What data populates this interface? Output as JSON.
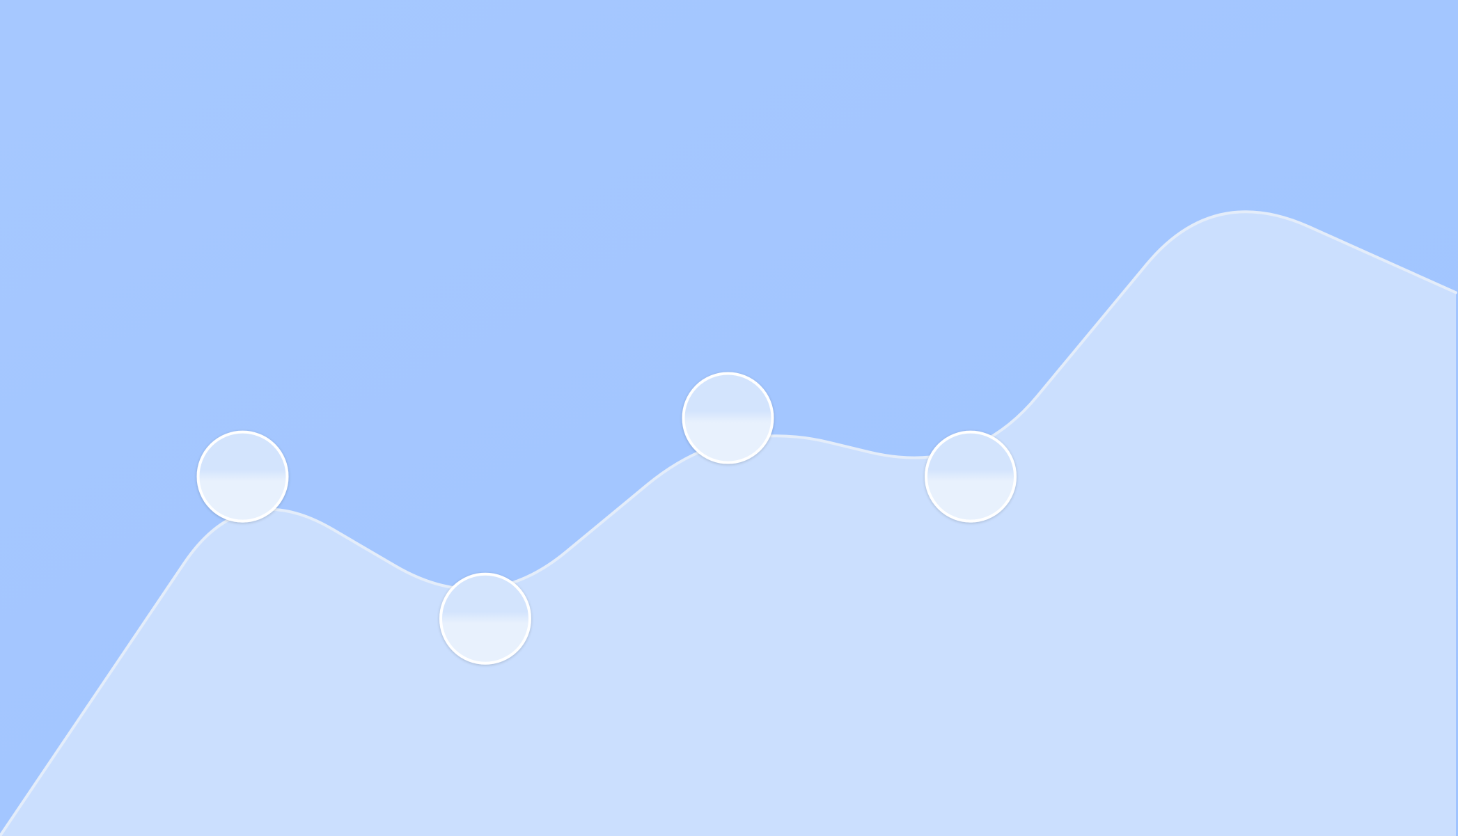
{
  "chart_data": {
    "type": "area",
    "x": [
      0,
      1,
      2,
      3,
      4,
      5,
      6
    ],
    "series": [
      {
        "values": [
          0,
          43,
          26,
          50,
          43,
          78,
          65
        ]
      }
    ],
    "markers": [
      1,
      2,
      3,
      4
    ],
    "ylim": [
      0,
      100
    ],
    "grid": false,
    "legend": "none",
    "title": "",
    "xlabel": "",
    "ylabel": ""
  },
  "colors": {
    "background_top": "#a6c8ff",
    "background_bottom": "#a0c4ff",
    "area_fill": "#cbdffe",
    "outline": "#e4edfa",
    "marker_fill_top": "#d3e4fd",
    "marker_fill_bottom": "#e8f1fd",
    "marker_stroke": "#ffffff"
  }
}
